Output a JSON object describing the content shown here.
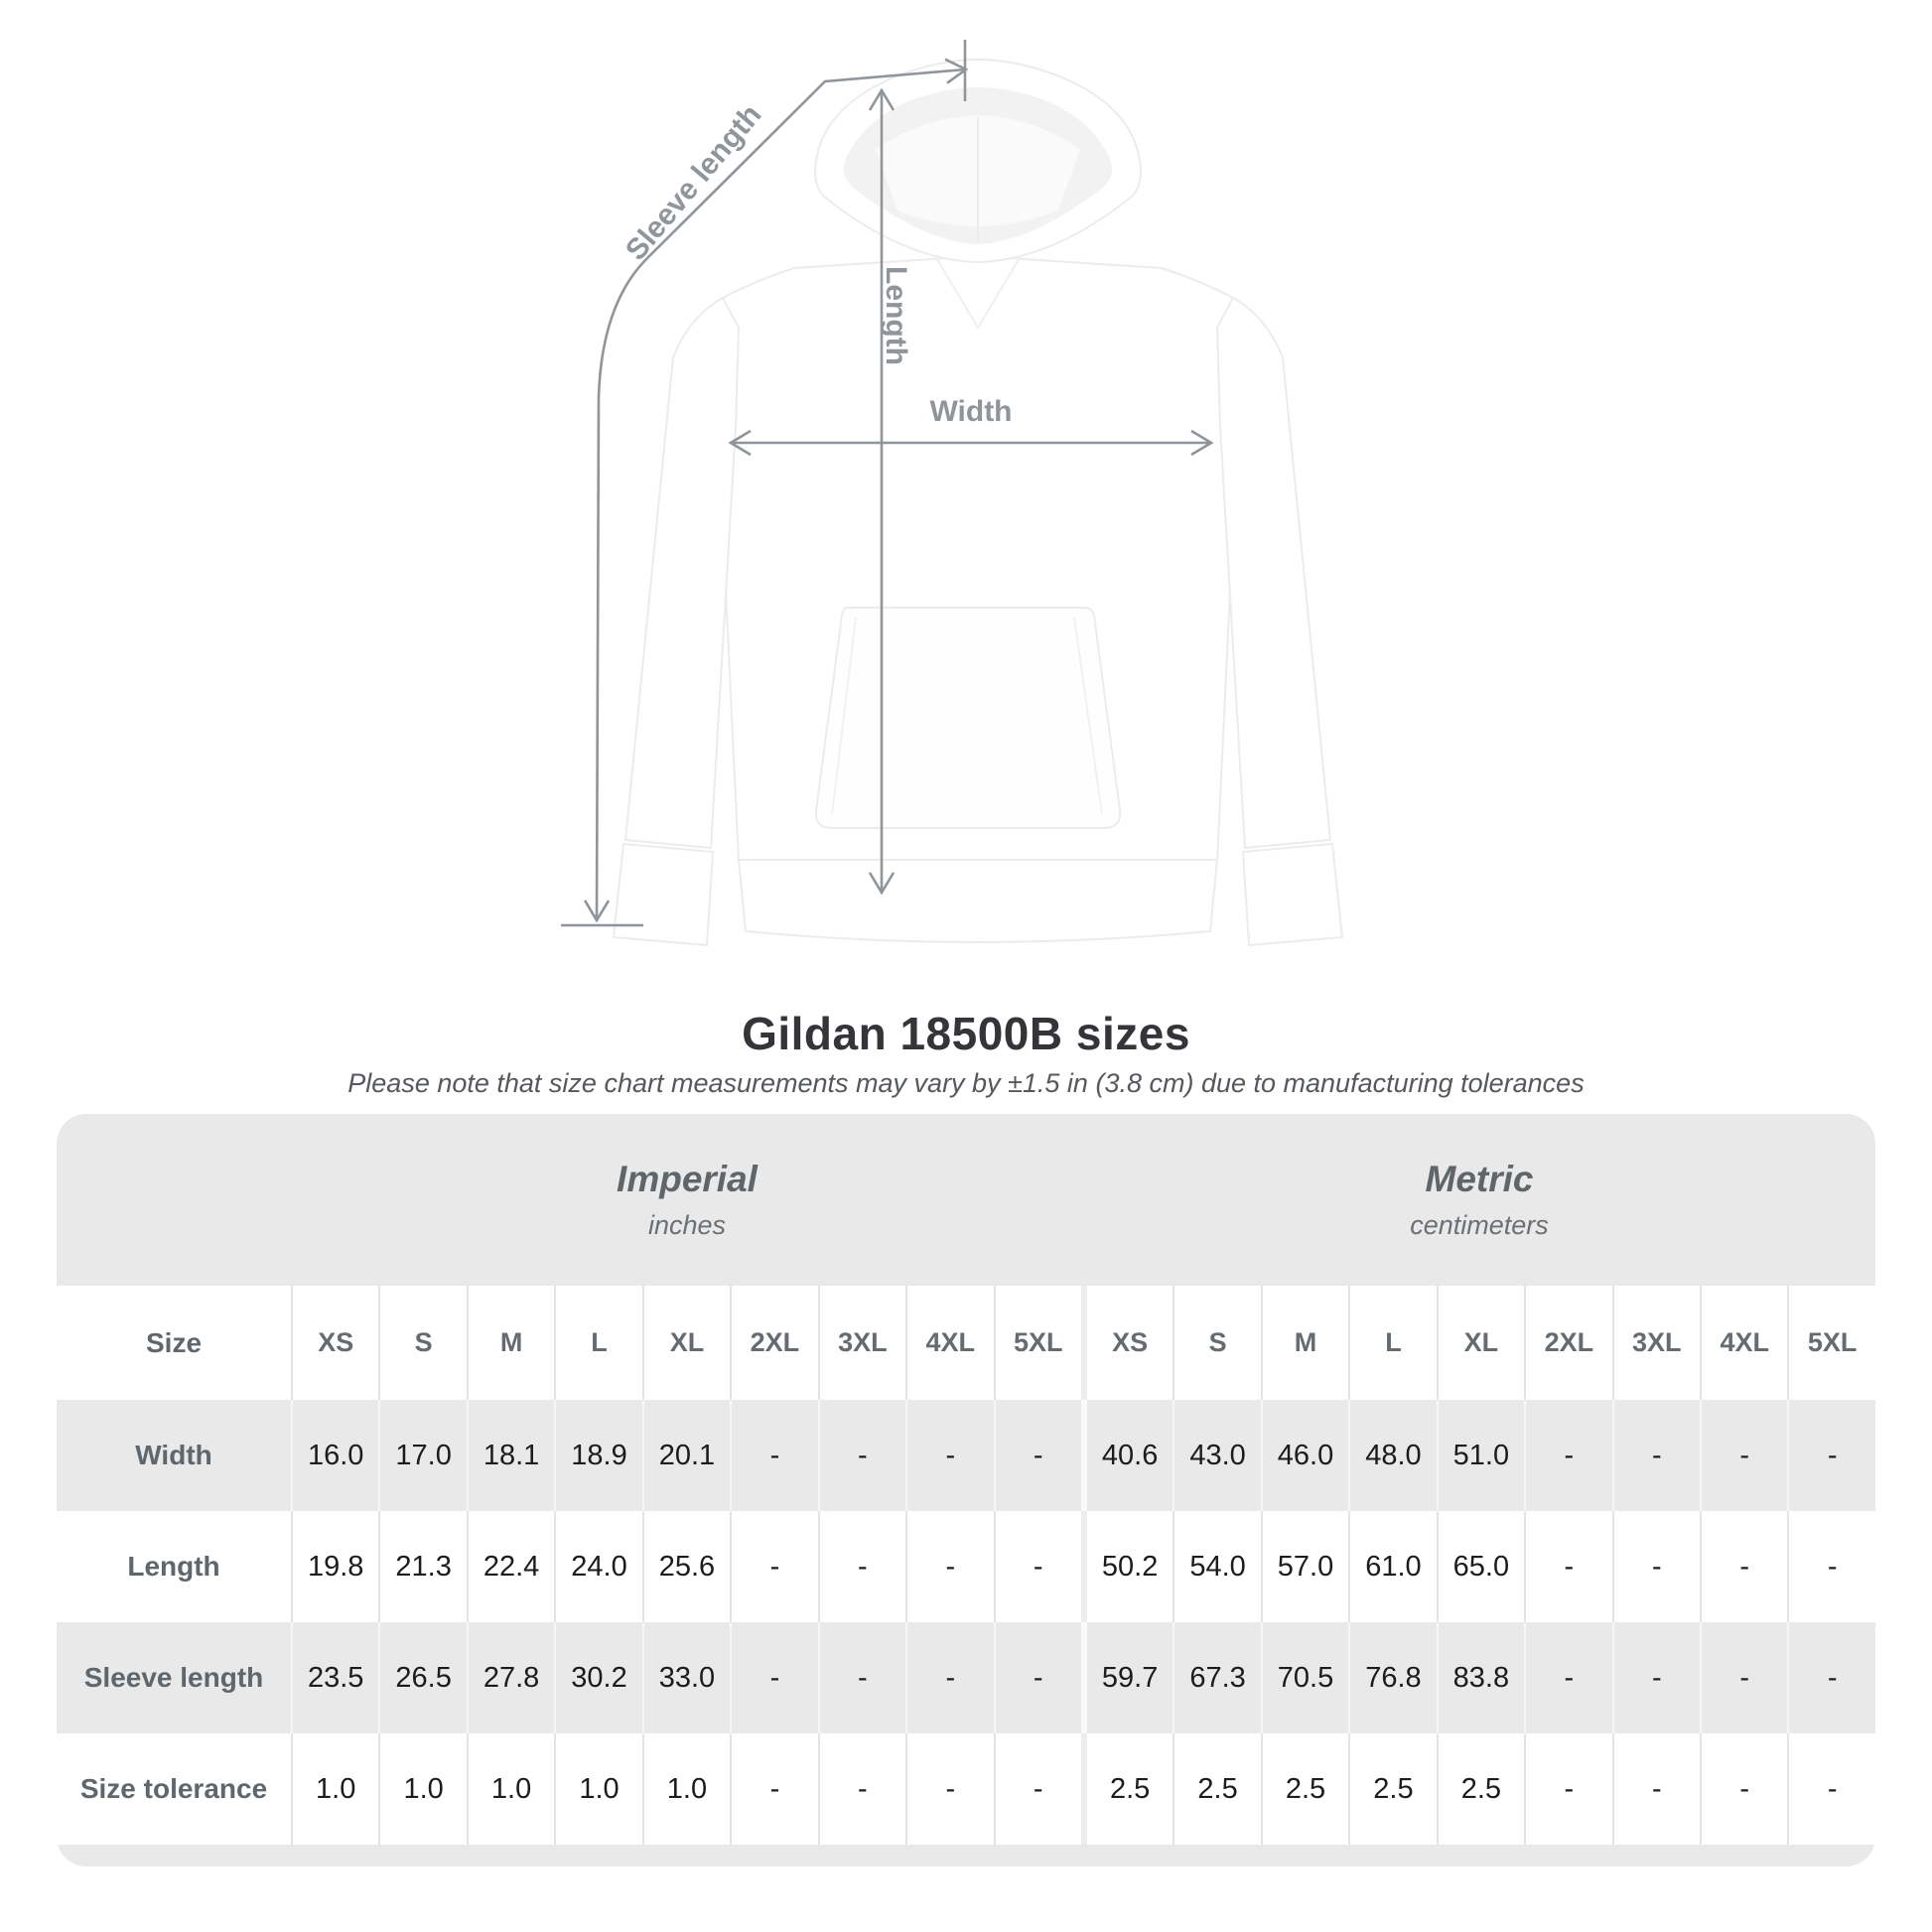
{
  "title": "Gildan 18500B sizes",
  "subtitle": "Please note that size chart measurements may vary by ±1.5 in (3.8 cm) due to manufacturing tolerances",
  "annotations": {
    "sleeve_length": "Sleeve length",
    "length": "Length",
    "width": "Width"
  },
  "colors": {
    "annotation_gray": "#8f959a",
    "title_text": "#333538",
    "subtitle_text": "#55585c",
    "table_background": "#e9e9e9",
    "header_text": "#656b70",
    "value_text": "#1c1c1c"
  },
  "table": {
    "sections": [
      {
        "label": "Imperial",
        "sublabel": "inches"
      },
      {
        "label": "Metric",
        "sublabel": "centimeters"
      }
    ],
    "size_header": "Size",
    "sizes": [
      "XS",
      "S",
      "M",
      "L",
      "XL",
      "2XL",
      "3XL",
      "4XL",
      "5XL"
    ],
    "rows": [
      {
        "label": "Width",
        "imperial": [
          "16.0",
          "17.0",
          "18.1",
          "18.9",
          "20.1",
          "-",
          "-",
          "-",
          "-"
        ],
        "metric": [
          "40.6",
          "43.0",
          "46.0",
          "48.0",
          "51.0",
          "-",
          "-",
          "-",
          "-"
        ]
      },
      {
        "label": "Length",
        "imperial": [
          "19.8",
          "21.3",
          "22.4",
          "24.0",
          "25.6",
          "-",
          "-",
          "-",
          "-"
        ],
        "metric": [
          "50.2",
          "54.0",
          "57.0",
          "61.0",
          "65.0",
          "-",
          "-",
          "-",
          "-"
        ]
      },
      {
        "label": "Sleeve length",
        "imperial": [
          "23.5",
          "26.5",
          "27.8",
          "30.2",
          "33.0",
          "-",
          "-",
          "-",
          "-"
        ],
        "metric": [
          "59.7",
          "67.3",
          "70.5",
          "76.8",
          "83.8",
          "-",
          "-",
          "-",
          "-"
        ]
      },
      {
        "label": "Size tolerance",
        "imperial": [
          "1.0",
          "1.0",
          "1.0",
          "1.0",
          "1.0",
          "-",
          "-",
          "-",
          "-"
        ],
        "metric": [
          "2.5",
          "2.5",
          "2.5",
          "2.5",
          "2.5",
          "-",
          "-",
          "-",
          "-"
        ]
      }
    ]
  }
}
